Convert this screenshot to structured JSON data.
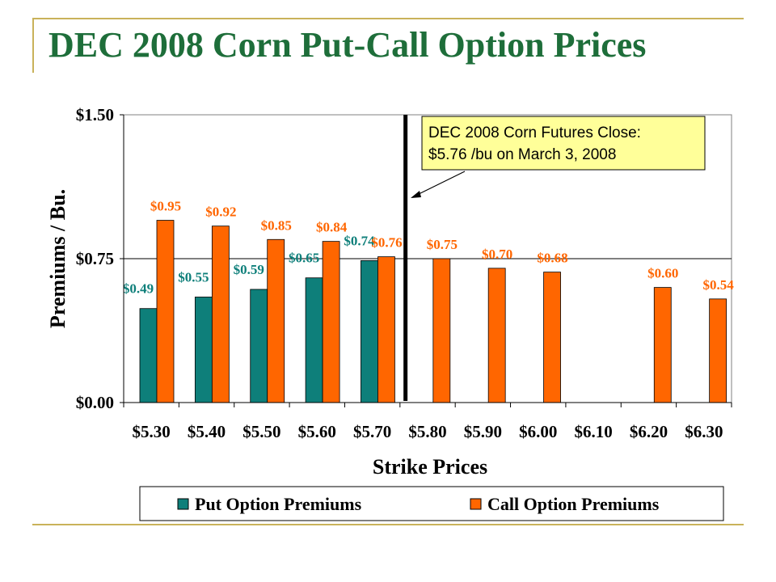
{
  "slide": {
    "title": "DEC 2008 Corn Put-Call Option Prices"
  },
  "colors": {
    "put": "#0e7f7a",
    "call": "#ff6600",
    "title": "#1e6e3a",
    "rule": "#c9b25a",
    "callout_bg": "#ffff99"
  },
  "chart_data": {
    "type": "bar",
    "title": "",
    "xlabel": "Strike Prices",
    "ylabel": "Premiums / Bu.",
    "ylim": [
      0,
      1.5
    ],
    "y_ticks": [
      {
        "value": 0,
        "label": "$0.00"
      },
      {
        "value": 0.75,
        "label": "$0.75"
      },
      {
        "value": 1.5,
        "label": "$1.50"
      }
    ],
    "grid": "horizontal gridline at $0.75",
    "legend_position": "bottom",
    "categories": [
      "$5.30",
      "$5.40",
      "$5.50",
      "$5.60",
      "$5.70",
      "$5.80",
      "$5.90",
      "$6.00",
      "$6.10",
      "$6.20",
      "$6.30"
    ],
    "series": [
      {
        "name": "Put Option Premiums",
        "color": "#0e7f7a",
        "values": [
          0.49,
          0.55,
          0.59,
          0.65,
          0.74,
          null,
          null,
          null,
          null,
          null,
          null
        ],
        "labels": [
          "$0.49",
          "$0.55",
          "$0.59",
          "$0.65",
          "$0.74",
          "",
          "",
          "",
          "",
          "",
          ""
        ]
      },
      {
        "name": "Call Option Premiums",
        "color": "#ff6600",
        "values": [
          0.95,
          0.92,
          0.85,
          0.84,
          0.76,
          0.75,
          0.7,
          0.68,
          null,
          0.6,
          0.54
        ],
        "labels": [
          "$0.95",
          "$0.92",
          "$0.85",
          "$0.84",
          "$0.76",
          "$0.75",
          "$0.70",
          "$0.68",
          "",
          "$0.60",
          "$0.54"
        ]
      }
    ],
    "reference_line": {
      "value": 5.76
    },
    "annotation": {
      "line1": "DEC 2008 Corn Futures Close:",
      "line2": "$5.76 /bu on March 3, 2008"
    }
  }
}
